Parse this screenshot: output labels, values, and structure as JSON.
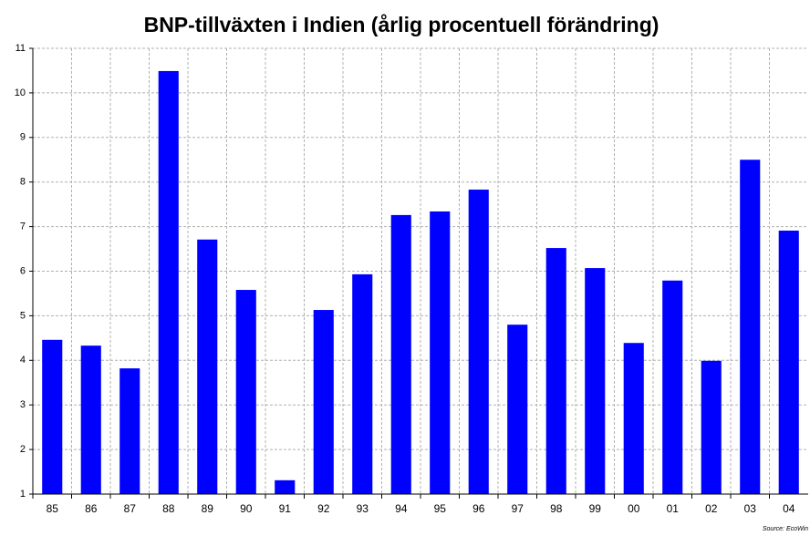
{
  "chart_data": {
    "type": "bar",
    "title": "BNP-tillväxten i Indien (årlig procentuell förändring)",
    "categories": [
      "85",
      "86",
      "87",
      "88",
      "89",
      "90",
      "91",
      "92",
      "93",
      "94",
      "95",
      "96",
      "97",
      "98",
      "99",
      "00",
      "01",
      "02",
      "03",
      "04"
    ],
    "values": [
      4.46,
      4.33,
      3.82,
      10.49,
      6.71,
      5.58,
      1.31,
      5.13,
      5.93,
      7.26,
      7.34,
      7.83,
      4.8,
      6.52,
      6.07,
      4.39,
      5.79,
      3.99,
      8.5,
      6.91
    ],
    "color": "#0000ff",
    "ylim": [
      1,
      11
    ],
    "yticks": [
      1,
      2,
      3,
      4,
      5,
      6,
      7,
      8,
      9,
      10,
      11
    ],
    "grid": true,
    "source": "Source: EcoWin"
  }
}
